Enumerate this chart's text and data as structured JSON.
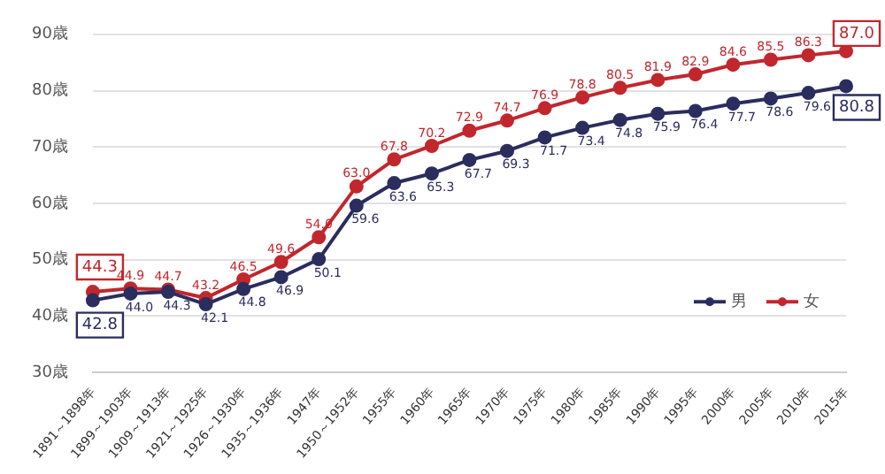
{
  "chart_data": {
    "type": "line",
    "categories": [
      "1891～1898年",
      "1899～1903年",
      "1909～1913年",
      "1921～1925年",
      "1926～1930年",
      "1935～1936年",
      "1947年",
      "1950～1952年",
      "1955年",
      "1960年",
      "1965年",
      "1970年",
      "1975年",
      "1980年",
      "1985年",
      "1990年",
      "1995年",
      "2000年",
      "2005年",
      "2010年",
      "2015年"
    ],
    "series": [
      {
        "name": "男",
        "color": "#2b2d5e",
        "values": [
          42.8,
          44.0,
          44.3,
          42.1,
          44.8,
          46.9,
          50.1,
          59.6,
          63.6,
          65.3,
          67.7,
          69.3,
          71.7,
          73.4,
          74.8,
          75.9,
          76.4,
          77.7,
          78.6,
          79.6,
          80.8
        ],
        "value_labels": [
          "42.8",
          "44.0",
          "44.3",
          "42.1",
          "44.8",
          "46.9",
          "50.1",
          "59.6",
          "63.6",
          "65.3",
          "67.7",
          "69.3",
          "71.7",
          "73.4",
          "74.8",
          "75.9",
          "76.4",
          "77.7",
          "78.6",
          "79.6",
          "80.8"
        ]
      },
      {
        "name": "女",
        "color": "#c1272d",
        "values": [
          44.3,
          44.9,
          44.7,
          43.2,
          46.5,
          49.6,
          54.0,
          63.0,
          67.8,
          70.2,
          72.9,
          74.7,
          76.9,
          78.8,
          80.5,
          81.9,
          82.9,
          84.6,
          85.5,
          86.3,
          87.0
        ],
        "value_labels": [
          "44.3",
          "44.9",
          "44.7",
          "43.2",
          "46.5",
          "49.6",
          "54.0",
          "63.0",
          "67.8",
          "70.2",
          "72.9",
          "74.7",
          "76.9",
          "78.8",
          "80.5",
          "81.9",
          "82.9",
          "84.6",
          "85.5",
          "86.3",
          "87.0"
        ]
      }
    ],
    "ylim": [
      30,
      90
    ],
    "yticks": [
      {
        "value": 30,
        "label": "30歳"
      },
      {
        "value": 40,
        "label": "40歳"
      },
      {
        "value": 50,
        "label": "50歳"
      },
      {
        "value": 60,
        "label": "60歳"
      },
      {
        "value": 70,
        "label": "70歳"
      },
      {
        "value": 80,
        "label": "80歳"
      },
      {
        "value": 90,
        "label": "90歳"
      }
    ],
    "grid": "y",
    "legend": "bottom right",
    "marker": "circle",
    "line_style": "solid"
  }
}
